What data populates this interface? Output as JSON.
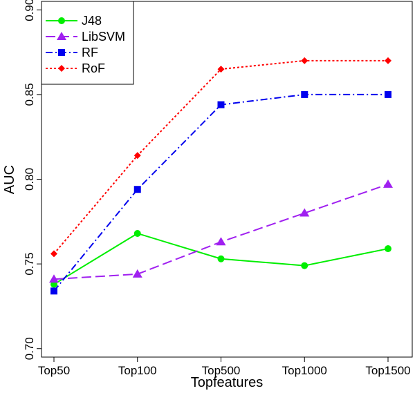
{
  "chart_data": {
    "type": "line",
    "title": "",
    "xlabel": "Topfeatures",
    "ylabel": "AUC",
    "categories": [
      "Top50",
      "Top100",
      "Top500",
      "Top1000",
      "Top1500"
    ],
    "ylim": [
      0.695,
      0.905
    ],
    "yticks": [
      0.7,
      0.75,
      0.8,
      0.85,
      0.9
    ],
    "ytick_labels": [
      "0.70",
      "0.75",
      "0.80",
      "0.85",
      "0.90"
    ],
    "grid": false,
    "legend_position": "top-left",
    "series": [
      {
        "name": "J48",
        "values": [
          0.738,
          0.768,
          0.753,
          0.749,
          0.759
        ],
        "color": "#00ee00",
        "marker": "circle",
        "dash": "solid"
      },
      {
        "name": "LibSVM",
        "values": [
          0.741,
          0.744,
          0.763,
          0.78,
          0.797
        ],
        "color": "#a020f0",
        "marker": "triangle",
        "dash": "longdash"
      },
      {
        "name": "RF",
        "values": [
          0.734,
          0.794,
          0.844,
          0.85,
          0.85
        ],
        "color": "#0000ee",
        "marker": "square",
        "dash": "dashdot"
      },
      {
        "name": "RoF",
        "values": [
          0.756,
          0.814,
          0.865,
          0.87,
          0.87
        ],
        "color": "#ff0000",
        "marker": "diamond",
        "dash": "dotted"
      }
    ]
  }
}
